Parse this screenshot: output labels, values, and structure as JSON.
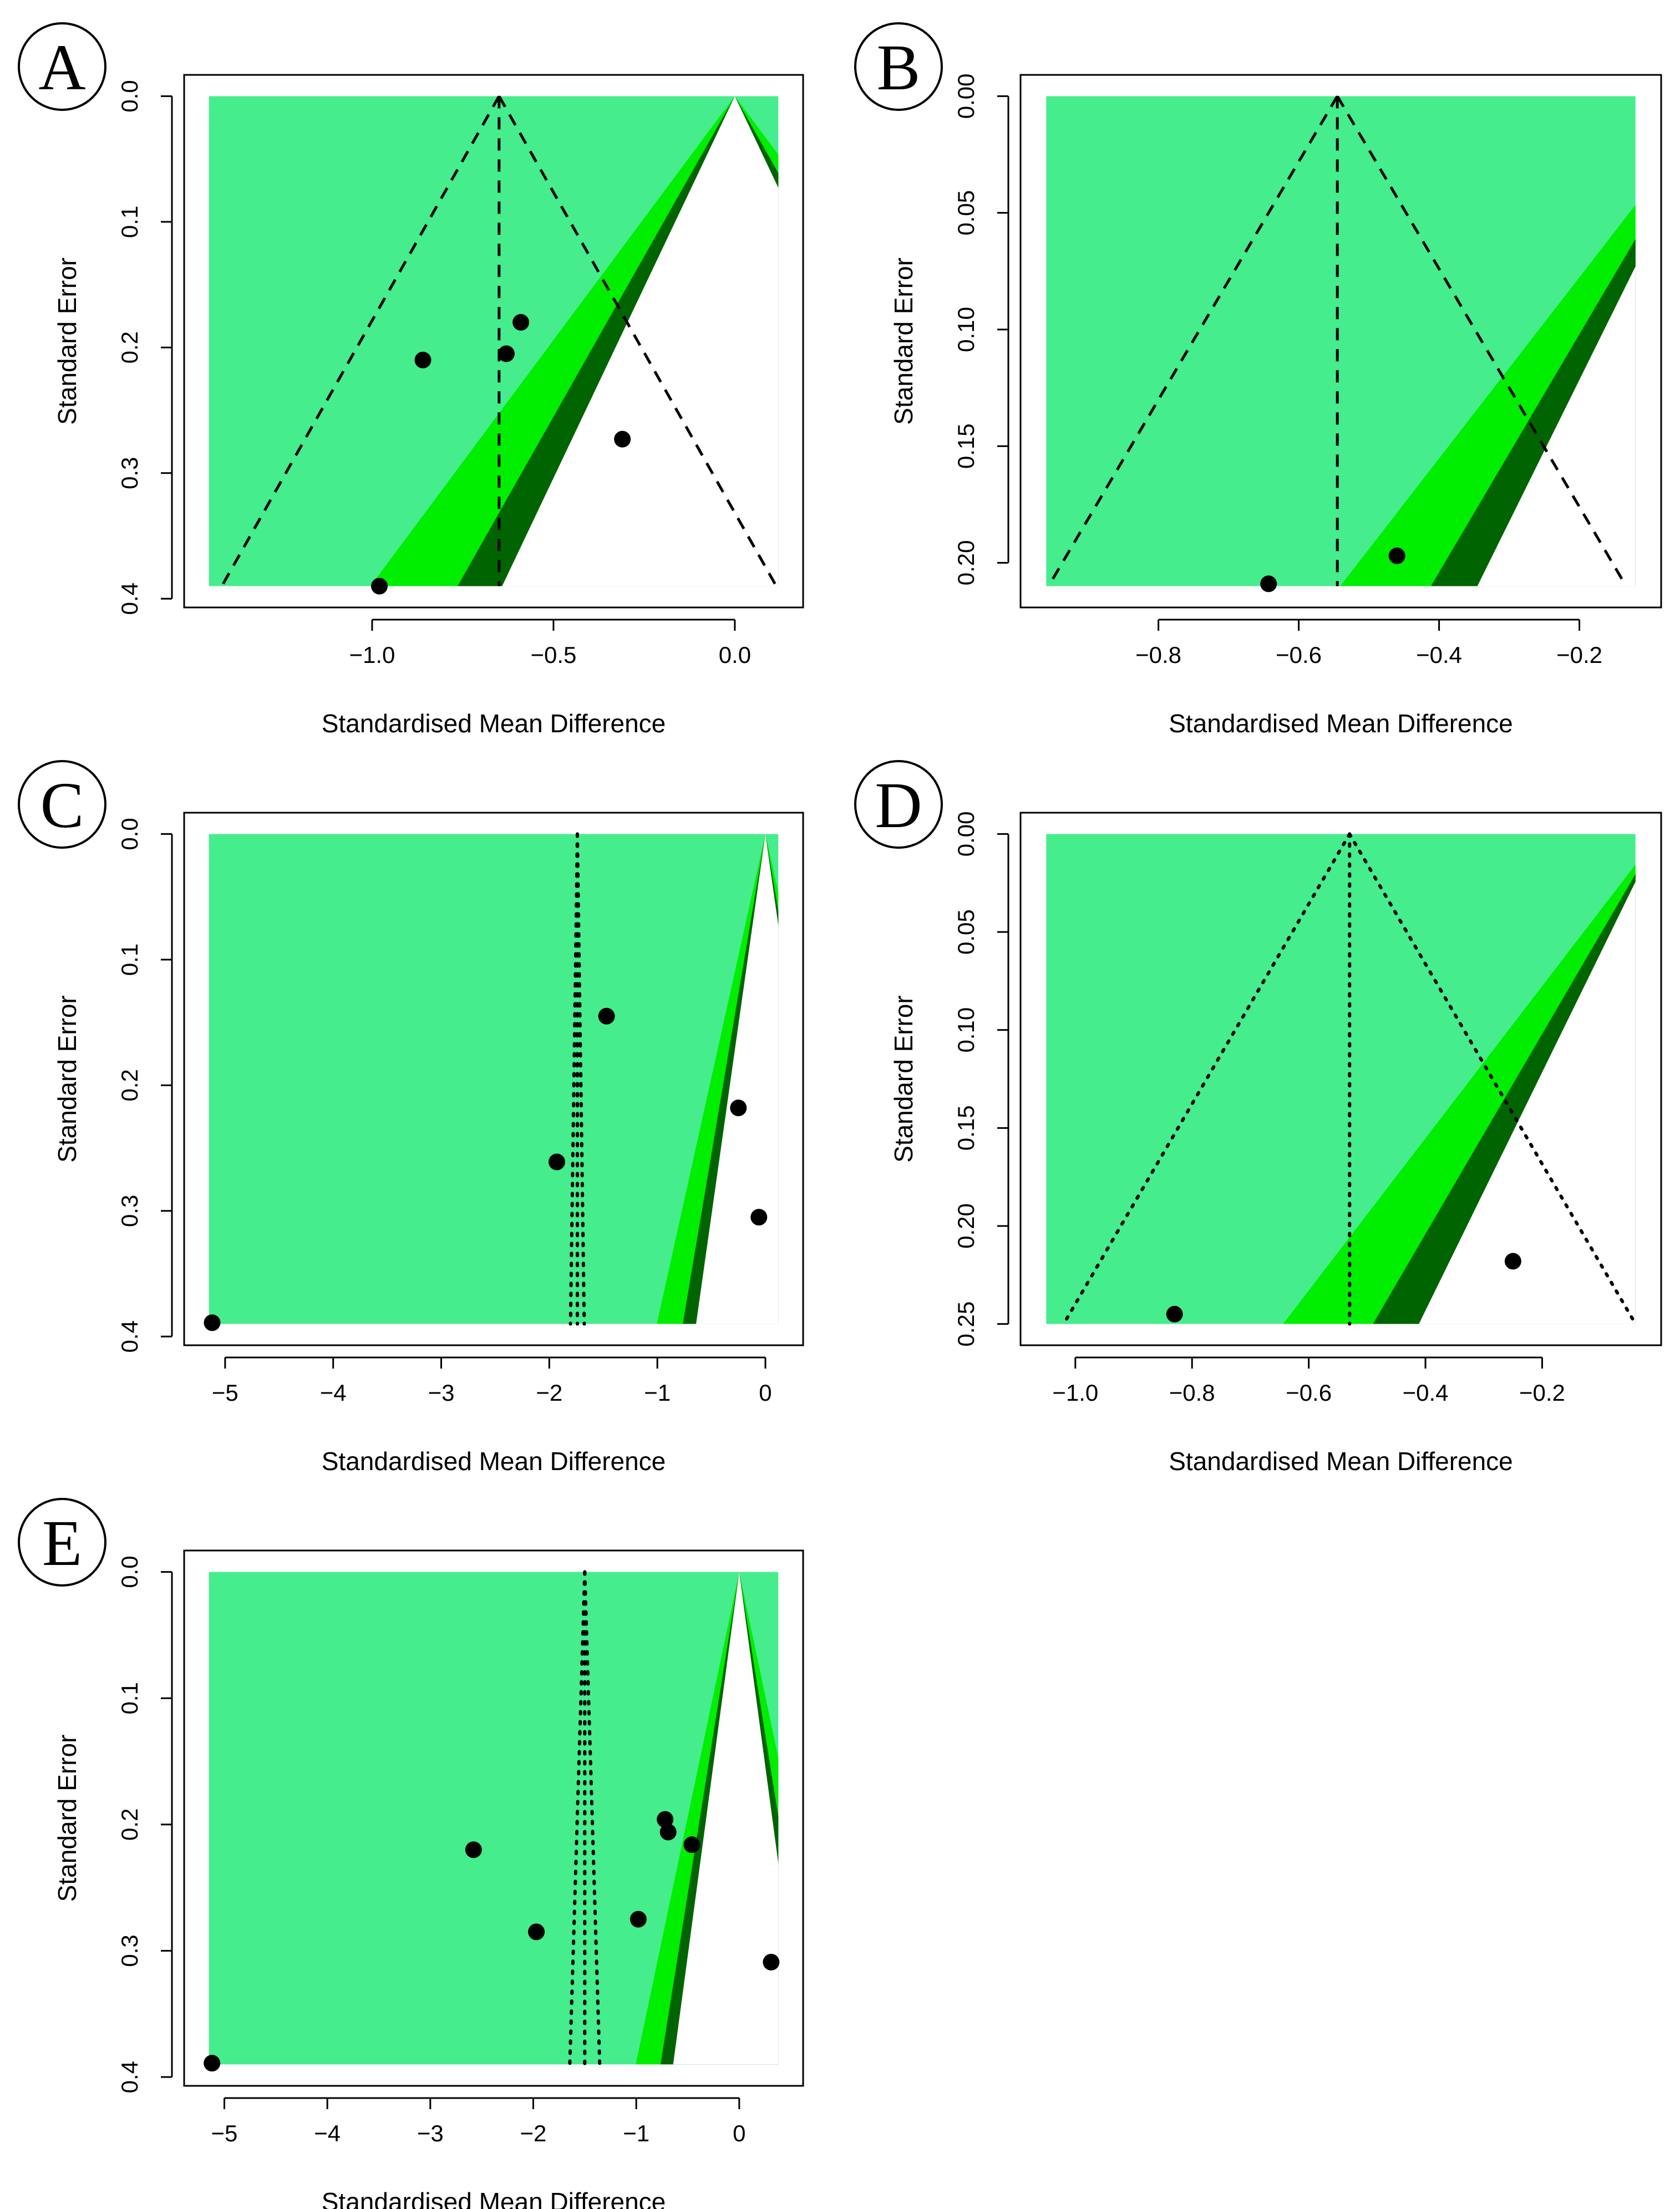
{
  "figure": {
    "colors": {
      "region_outer": "#45ed8c",
      "region_mid": "#00ee00",
      "region_inner": "#006400",
      "region_null": "#ffffff",
      "point": "#000000",
      "axis": "#000000"
    }
  },
  "chart_data": [
    {
      "type": "scatter",
      "subtype": "contour-enhanced funnel plot",
      "panel": "A",
      "xlabel": "Standardised Mean Difference",
      "ylabel": "Standard Error",
      "xlim": [
        -1.45,
        0.12
      ],
      "ylim": [
        0.0,
        0.39
      ],
      "xticks": [
        -1.0,
        -0.5,
        0.0
      ],
      "xtick_labels": [
        "−1.0",
        "−0.5",
        "0.0"
      ],
      "yticks": [
        0.0,
        0.1,
        0.2,
        0.3,
        0.4
      ],
      "ytick_labels": [
        "0.0",
        "0.1",
        "0.2",
        "0.3",
        "0.4"
      ],
      "pooled_effect": -0.65,
      "funnel_line_style": "dashed",
      "points": [
        {
          "x": -0.86,
          "se": 0.21
        },
        {
          "x": -0.63,
          "se": 0.205
        },
        {
          "x": -0.59,
          "se": 0.18
        },
        {
          "x": -0.31,
          "se": 0.273
        },
        {
          "x": -0.98,
          "se": 0.39
        }
      ]
    },
    {
      "type": "scatter",
      "subtype": "contour-enhanced funnel plot",
      "panel": "B",
      "xlabel": "Standardised Mean Difference",
      "ylabel": "Standard Error",
      "xlim": [
        -0.96,
        -0.12
      ],
      "ylim": [
        0.0,
        0.21
      ],
      "xticks": [
        -0.8,
        -0.6,
        -0.4,
        -0.2
      ],
      "xtick_labels": [
        "−0.8",
        "−0.6",
        "−0.4",
        "−0.2"
      ],
      "yticks": [
        0.0,
        0.05,
        0.1,
        0.15,
        0.2
      ],
      "ytick_labels": [
        "0.00",
        "0.05",
        "0.10",
        "0.15",
        "0.20"
      ],
      "pooled_effect": -0.545,
      "funnel_line_style": "dashed",
      "points": [
        {
          "x": -0.643,
          "se": 0.209
        },
        {
          "x": -0.46,
          "se": 0.197
        }
      ]
    },
    {
      "type": "scatter",
      "subtype": "contour-enhanced funnel plot",
      "panel": "C",
      "xlabel": "Standardised Mean Difference",
      "ylabel": "Standard Error",
      "xlim": [
        -5.15,
        0.12
      ],
      "ylim": [
        0.0,
        0.39
      ],
      "xticks": [
        -5,
        -4,
        -3,
        -2,
        -1,
        0
      ],
      "xtick_labels": [
        "−5",
        "−4",
        "−3",
        "−2",
        "−1",
        "0"
      ],
      "yticks": [
        0.0,
        0.1,
        0.2,
        0.3,
        0.4
      ],
      "ytick_labels": [
        "0.0",
        "0.1",
        "0.2",
        "0.3",
        "0.4"
      ],
      "pooled_effect": -1.74,
      "funnel_line_style": "dotted",
      "funnel_se_scale": 0.0832,
      "points": [
        {
          "x": -1.47,
          "se": 0.145
        },
        {
          "x": -1.93,
          "se": 0.261
        },
        {
          "x": -0.25,
          "se": 0.218
        },
        {
          "x": -0.06,
          "se": 0.305
        },
        {
          "x": -5.12,
          "se": 0.389
        }
      ]
    },
    {
      "type": "scatter",
      "subtype": "contour-enhanced funnel plot",
      "panel": "D",
      "xlabel": "Standardised Mean Difference",
      "ylabel": "Standard Error",
      "xlim": [
        -1.05,
        -0.04
      ],
      "ylim": [
        0.0,
        0.25
      ],
      "xticks": [
        -1.0,
        -0.8,
        -0.6,
        -0.4,
        -0.2
      ],
      "xtick_labels": [
        "−1.0",
        "−0.8",
        "−0.6",
        "−0.4",
        "−0.2"
      ],
      "yticks": [
        0.0,
        0.05,
        0.1,
        0.15,
        0.2,
        0.25
      ],
      "ytick_labels": [
        "0.00",
        "0.05",
        "0.10",
        "0.15",
        "0.20",
        "0.25"
      ],
      "pooled_effect": -0.53,
      "funnel_line_style": "dotted",
      "points": [
        {
          "x": -0.83,
          "se": 0.245
        },
        {
          "x": -0.25,
          "se": 0.218
        }
      ]
    },
    {
      "type": "scatter",
      "subtype": "contour-enhanced funnel plot",
      "panel": "E",
      "xlabel": "Standardised Mean Difference",
      "ylabel": "Standard Error",
      "xlim": [
        -5.15,
        0.38
      ],
      "ylim": [
        0.0,
        0.39
      ],
      "xticks": [
        -5,
        -4,
        -3,
        -2,
        -1,
        0
      ],
      "xtick_labels": [
        "−5",
        "−4",
        "−3",
        "−2",
        "−1",
        "0"
      ],
      "yticks": [
        0.0,
        0.1,
        0.2,
        0.3,
        0.4
      ],
      "ytick_labels": [
        "0.0",
        "0.1",
        "0.2",
        "0.3",
        "0.4"
      ],
      "pooled_effect": -1.5,
      "funnel_line_style": "dotted",
      "funnel_se_scale": 0.19,
      "points": [
        {
          "x": -2.58,
          "se": 0.22
        },
        {
          "x": -1.97,
          "se": 0.285
        },
        {
          "x": -0.98,
          "se": 0.275
        },
        {
          "x": -0.72,
          "se": 0.196
        },
        {
          "x": -0.69,
          "se": 0.206
        },
        {
          "x": -0.46,
          "se": 0.216
        },
        {
          "x": 0.31,
          "se": 0.309
        },
        {
          "x": -5.12,
          "se": 0.389
        }
      ]
    }
  ]
}
